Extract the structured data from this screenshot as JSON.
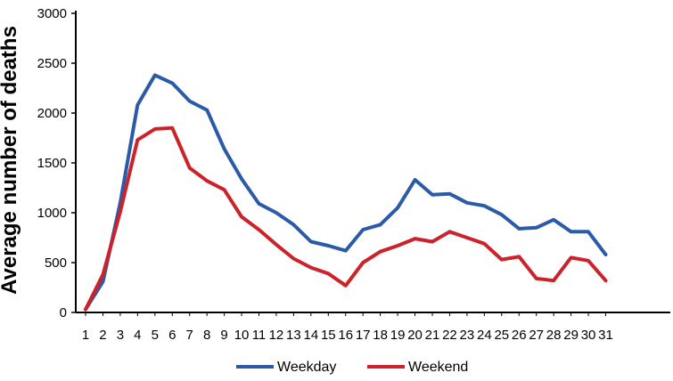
{
  "chart_data": {
    "type": "line",
    "title": "",
    "xlabel": "",
    "ylabel": "Average number of deaths",
    "x": [
      "1",
      "2",
      "3",
      "4",
      "5",
      "6",
      "7",
      "8",
      "9",
      "10",
      "11",
      "12",
      "13",
      "14",
      "15",
      "16",
      "17",
      "18",
      "19",
      "20",
      "21",
      "22",
      "23",
      "24",
      "25",
      "26",
      "27",
      "28",
      "29",
      "30",
      "31"
    ],
    "ylim": [
      0,
      3000
    ],
    "yticks": [
      "0",
      "500",
      "1000",
      "1500",
      "2000",
      "2500",
      "3000"
    ],
    "grid": false,
    "legend_position": "bottom",
    "series": [
      {
        "name": "Weekday",
        "color": "#2b5ba8",
        "values": [
          30,
          310,
          1100,
          2080,
          2380,
          2300,
          2120,
          2030,
          1640,
          1340,
          1090,
          1000,
          880,
          710,
          670,
          620,
          830,
          880,
          1050,
          1330,
          1180,
          1190,
          1100,
          1070,
          980,
          840,
          850,
          930,
          810,
          810,
          580
        ]
      },
      {
        "name": "Weekend",
        "color": "#cc2229",
        "values": [
          30,
          380,
          1010,
          1730,
          1840,
          1850,
          1450,
          1320,
          1230,
          960,
          830,
          680,
          540,
          450,
          390,
          270,
          500,
          610,
          670,
          740,
          710,
          810,
          750,
          690,
          530,
          560,
          340,
          320,
          550,
          520,
          320
        ]
      }
    ]
  }
}
